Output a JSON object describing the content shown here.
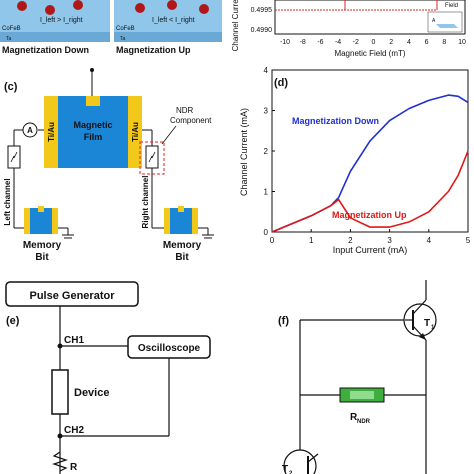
{
  "panel_a": {
    "layer_top": "CoFeB",
    "layer_bottom": "Ta",
    "left_caption": "Magnetization Down",
    "right_caption": "Magnetization Up",
    "left_inequality": "I_left > I_right",
    "right_inequality": "I_left < I_right"
  },
  "panel_b": {
    "ylabel": "Channel Current",
    "xlabel": "Magnetic Field (mT)",
    "yticks": [
      "0.4995",
      "0.4990"
    ],
    "xticks": [
      "-10",
      "-8",
      "-6",
      "-4",
      "-2",
      "0",
      "2",
      "4",
      "6",
      "8",
      "10"
    ],
    "inset_label": "Field",
    "inset_letter": "A"
  },
  "panel_c": {
    "letter": "(c)",
    "film_label": "Magnetic Film",
    "contact_label": "Ti/Au",
    "ammeter": "A",
    "ndr_label": "NDR Component",
    "left_channel": "Left channel",
    "right_channel": "Right channel",
    "memory_bit": "Memory Bit"
  },
  "chart_data": {
    "type": "line",
    "panel": "(d)",
    "xlabel": "Input Current (mA)",
    "ylabel": "Channel Current (mA)",
    "xlim": [
      0,
      5
    ],
    "ylim": [
      0,
      4
    ],
    "xticks": [
      0,
      1,
      2,
      3,
      4,
      5
    ],
    "yticks": [
      0,
      1,
      2,
      3,
      4
    ],
    "grid": false,
    "series": [
      {
        "name": "Magnetization Down",
        "color": "#1f2fd0",
        "x": [
          0,
          0.5,
          1.0,
          1.5,
          1.7,
          2.0,
          2.5,
          3.0,
          3.5,
          4.0,
          4.5,
          4.75,
          5.0
        ],
        "y": [
          0.0,
          0.2,
          0.4,
          0.65,
          0.85,
          1.5,
          2.25,
          2.75,
          3.05,
          3.25,
          3.38,
          3.35,
          3.2
        ]
      },
      {
        "name": "Magnetization Up",
        "color": "#e01818",
        "x": [
          0,
          0.5,
          1.0,
          1.5,
          1.7,
          2.0,
          2.5,
          3.0,
          3.5,
          4.0,
          4.5,
          4.75,
          5.0
        ],
        "y": [
          0.0,
          0.2,
          0.4,
          0.65,
          0.8,
          0.35,
          0.12,
          0.12,
          0.25,
          0.5,
          1.0,
          1.4,
          2.0
        ]
      }
    ]
  },
  "panel_e": {
    "letter": "(e)",
    "pulse_generator": "Pulse Generator",
    "ch1": "CH1",
    "ch2": "CH2",
    "oscilloscope": "Oscilloscope",
    "device": "Device",
    "resistor": "R"
  },
  "panel_f": {
    "letter": "(f)",
    "t1": "T",
    "t1_sub": "1",
    "t2": "T",
    "t2_sub": "2",
    "rndr": "R",
    "rndr_sub": "NDR"
  }
}
